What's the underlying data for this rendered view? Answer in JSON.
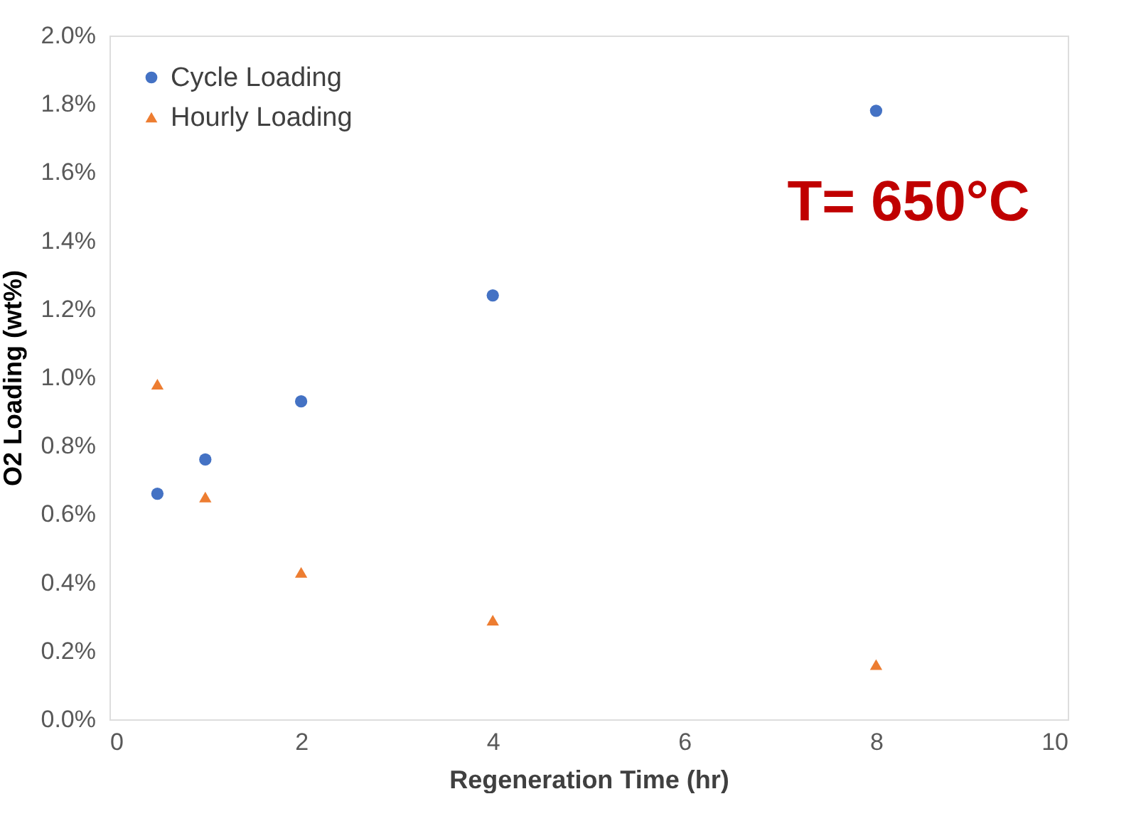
{
  "chart_data": {
    "type": "scatter",
    "xlabel": "Regeneration Time (hr)",
    "ylabel": "O2 Loading (wt%)",
    "annotations": [
      "T= 650°C"
    ],
    "series": [
      {
        "name": "Cycle Loading",
        "color": "#4472c4",
        "marker": "circle",
        "x": [
          0.5,
          1,
          2,
          4,
          8
        ],
        "values": [
          0.66,
          0.76,
          0.93,
          1.24,
          1.78
        ]
      },
      {
        "name": "Hourly Loading",
        "color": "#ed7d31",
        "marker": "triangle",
        "x": [
          0.5,
          1,
          2,
          4,
          8
        ],
        "values": [
          0.98,
          0.65,
          0.43,
          0.29,
          0.16
        ]
      }
    ],
    "xlim": [
      0,
      10
    ],
    "xticks": [
      0,
      2,
      4,
      6,
      8,
      10
    ],
    "ylim": [
      0,
      2
    ],
    "yticks": [
      {
        "value": 0,
        "label": "0.0%"
      },
      {
        "value": 0.2,
        "label": "0.2%"
      },
      {
        "value": 0.4,
        "label": "0.4%"
      },
      {
        "value": 0.6,
        "label": "0.6%"
      },
      {
        "value": 0.8,
        "label": "0.8%"
      },
      {
        "value": 1.0,
        "label": "1.0%"
      },
      {
        "value": 1.2,
        "label": "1.2%"
      },
      {
        "value": 1.4,
        "label": "1.4%"
      },
      {
        "value": 1.6,
        "label": "1.6%"
      },
      {
        "value": 1.8,
        "label": "1.8%"
      },
      {
        "value": 2.0,
        "label": "2.0%"
      }
    ],
    "grid": false,
    "legend": "top left"
  }
}
